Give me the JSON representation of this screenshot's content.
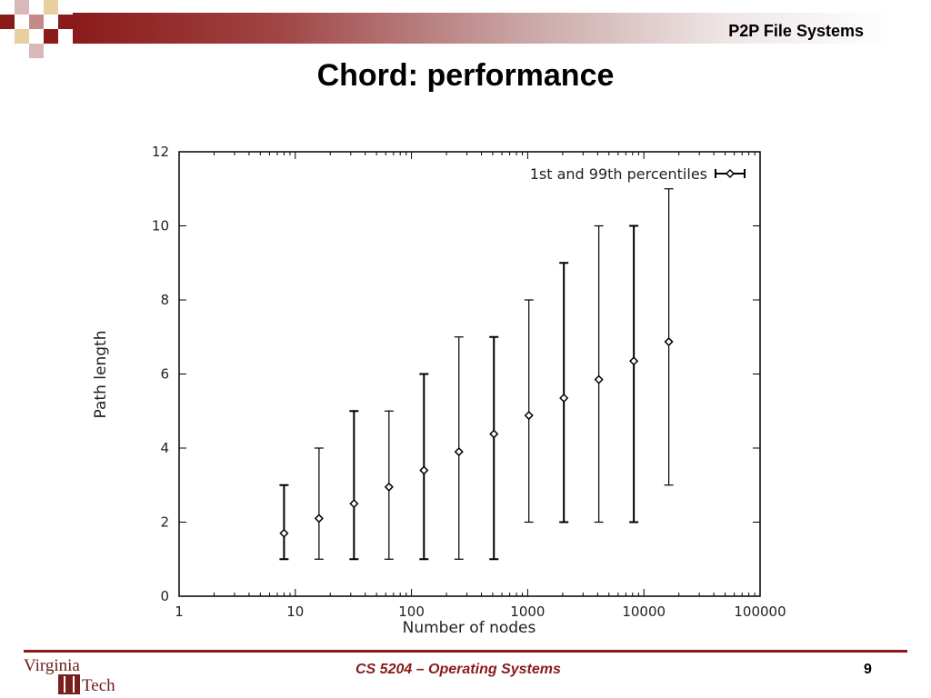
{
  "header": {
    "title": "P2P File Systems",
    "accent": "#8b1a1a"
  },
  "slide": {
    "title": "Chord: performance"
  },
  "chart_data": {
    "type": "scatter",
    "title": "",
    "xlabel": "Number of nodes",
    "ylabel": "Path length",
    "xscale": "log",
    "xlim": [
      1,
      100000
    ],
    "ylim": [
      0,
      12
    ],
    "xticks": [
      "1",
      "10",
      "100",
      "1000",
      "10000",
      "100000"
    ],
    "yticks": [
      "0",
      "2",
      "4",
      "6",
      "8",
      "10",
      "12"
    ],
    "legend_position": "top-right",
    "grid": false,
    "series": [
      {
        "name": "1st and 99th percentiles",
        "points": [
          {
            "x": 8,
            "y": 1.7,
            "low": 1,
            "high": 3
          },
          {
            "x": 16,
            "y": 2.1,
            "low": 1,
            "high": 4
          },
          {
            "x": 32,
            "y": 2.5,
            "low": 1,
            "high": 5
          },
          {
            "x": 64,
            "y": 2.95,
            "low": 1,
            "high": 5
          },
          {
            "x": 128,
            "y": 3.4,
            "low": 1,
            "high": 6
          },
          {
            "x": 256,
            "y": 3.9,
            "low": 1,
            "high": 7
          },
          {
            "x": 512,
            "y": 4.38,
            "low": 1,
            "high": 7
          },
          {
            "x": 1024,
            "y": 4.88,
            "low": 2,
            "high": 8
          },
          {
            "x": 2048,
            "y": 5.35,
            "low": 2,
            "high": 9
          },
          {
            "x": 4096,
            "y": 5.85,
            "low": 2,
            "high": 10
          },
          {
            "x": 8192,
            "y": 6.35,
            "low": 2,
            "high": 10
          },
          {
            "x": 16384,
            "y": 6.87,
            "low": 3,
            "high": 11
          }
        ]
      }
    ]
  },
  "footer": {
    "course": "CS 5204 – Operating Systems",
    "page": "9",
    "logo_line1": "Virginia",
    "logo_line2": "Tech"
  }
}
